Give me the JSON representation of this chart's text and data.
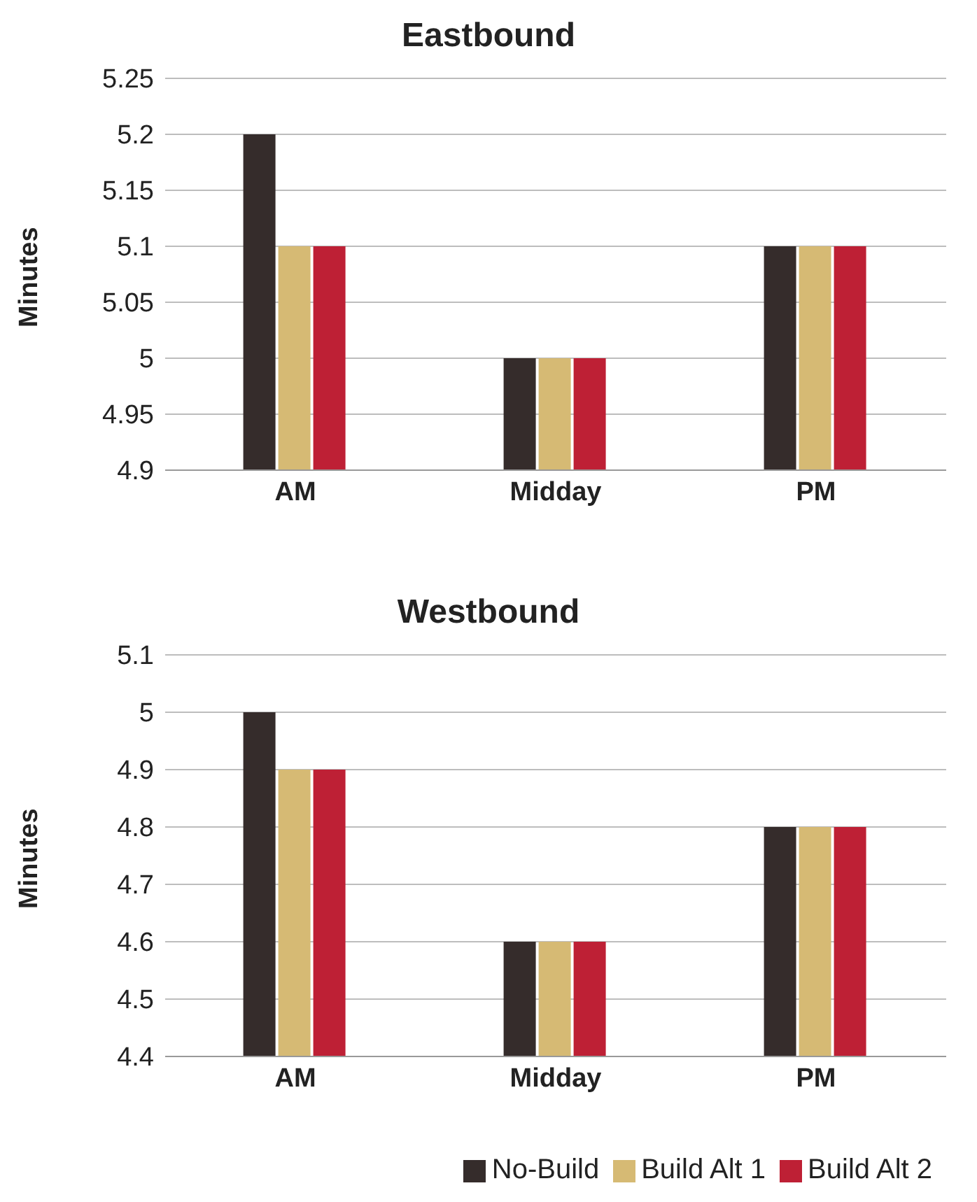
{
  "chart_data": [
    {
      "type": "bar",
      "title": "Eastbound",
      "ylabel": "Minutes",
      "categories": [
        "AM",
        "Midday",
        "PM"
      ],
      "series": [
        {
          "color": "#352c2b",
          "values": [
            5.2,
            5,
            5.1
          ]
        },
        {
          "color": "#d6ba74",
          "values": [
            5.1,
            5,
            5.1
          ]
        },
        {
          "color": "#be2035",
          "values": [
            5.1,
            5,
            5.1
          ]
        }
      ],
      "ylim": [
        4.9,
        5.25
      ],
      "yticks": [
        4.9,
        4.95,
        5,
        5.05,
        5.1,
        5.15,
        5.2,
        5.25
      ],
      "grid": "y"
    },
    {
      "type": "bar",
      "title": "Westbound",
      "ylabel": "Minutes",
      "categories": [
        "AM",
        "Midday",
        "PM"
      ],
      "series": [
        {
          "name": "No-Build",
          "color": "#352c2b",
          "values": [
            5,
            4.6,
            4.8
          ]
        },
        {
          "name": "Build Alt 1",
          "color": "#d6ba74",
          "values": [
            4.9,
            4.6,
            4.8
          ]
        },
        {
          "name": "Build Alt 2",
          "color": "#be2035",
          "values": [
            4.9,
            4.6,
            4.8
          ]
        }
      ],
      "ylim": [
        4.4,
        5.1
      ],
      "yticks": [
        4.4,
        4.5,
        4.6,
        4.7,
        4.8,
        4.9,
        5,
        5.1
      ],
      "grid": "y",
      "legend": "bottom right"
    }
  ]
}
